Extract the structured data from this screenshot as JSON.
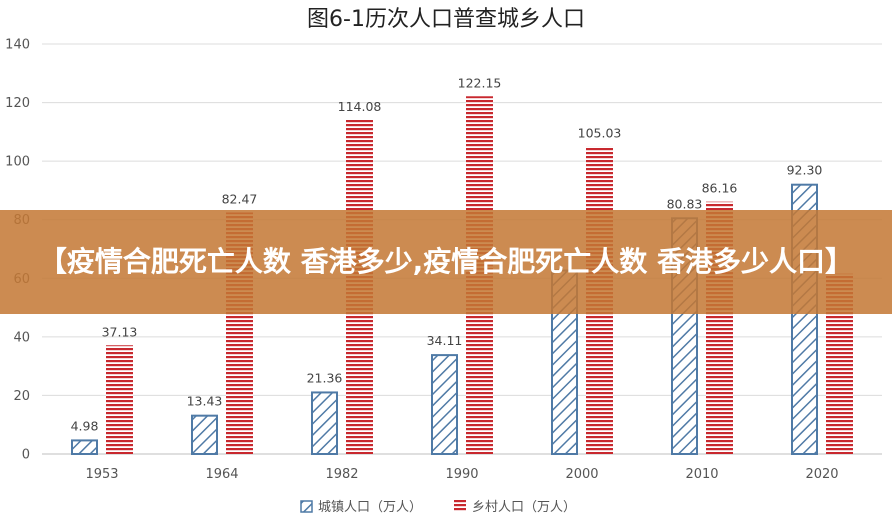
{
  "chart_data": {
    "type": "bar",
    "title": "图6-1历次人口普查城乡人口",
    "categories": [
      "1953",
      "1964",
      "1982",
      "1990",
      "2000",
      "2010",
      "2020"
    ],
    "series": [
      {
        "name": "城镇人口（万人）",
        "values": [
          4.98,
          13.43,
          21.36,
          34.11,
          63.0,
          80.83,
          92.3
        ],
        "labels": [
          "4.98",
          "13.43",
          "21.36",
          "34.11",
          "",
          "80.83",
          "92.30"
        ],
        "color": "#4f7aa6",
        "pattern": "diagonal-hatch"
      },
      {
        "name": "乡村人口（万人）",
        "values": [
          37.13,
          82.47,
          114.08,
          122.15,
          105.03,
          86.16,
          61.57
        ],
        "labels": [
          "37.13",
          "82.47",
          "114.08",
          "122.15",
          "105.03",
          "86.16",
          ""
        ],
        "color": "#c8282e",
        "pattern": "horizontal-stripes"
      }
    ],
    "ylim": [
      0,
      140
    ],
    "yticks": [
      "0",
      "20",
      "40",
      "60",
      "80",
      "100",
      "120",
      "140"
    ],
    "grid": true,
    "legend": "bottom"
  },
  "overlay": {
    "text": "【疫情合肥死亡人数 香港多少,疫情合肥死亡人数 香港多少人口】",
    "color": "#c47834"
  }
}
